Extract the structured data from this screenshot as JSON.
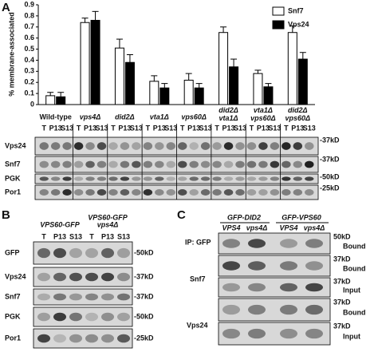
{
  "chart_data": {
    "type": "bar",
    "y_label": "% membrane-associated",
    "categories": [
      "Wild-type",
      "vps4Δ",
      "did2Δ",
      "vta1Δ",
      "vps60Δ",
      "did2Δ vta1Δ",
      "vta1Δ vps60Δ",
      "did2Δ vps60Δ"
    ],
    "series": [
      {
        "name": "Snf7",
        "color": "#ffffff",
        "values": [
          0.08,
          0.74,
          0.51,
          0.21,
          0.22,
          0.65,
          0.28,
          0.65
        ],
        "errors": [
          0.03,
          0.04,
          0.08,
          0.05,
          0.06,
          0.05,
          0.03,
          0.06
        ]
      },
      {
        "name": "Vps24",
        "color": "#000000",
        "values": [
          0.07,
          0.76,
          0.38,
          0.15,
          0.15,
          0.34,
          0.16,
          0.41
        ],
        "errors": [
          0.04,
          0.08,
          0.07,
          0.04,
          0.04,
          0.07,
          0.03,
          0.06
        ]
      }
    ],
    "ylim": [
      0,
      0.9
    ],
    "yticks": [
      0,
      0.1,
      0.2,
      0.3,
      0.4,
      0.5,
      0.6,
      0.7,
      0.8,
      0.9
    ],
    "legend": "top-right"
  },
  "panels": {
    "A": {
      "label": "A",
      "lanes": [
        "T",
        "P13",
        "S13"
      ],
      "rows": [
        "Vps24",
        "Snf7",
        "PGK",
        "Por1"
      ],
      "markers": [
        "-37kD",
        "-37kD",
        "-50kD",
        "-25kD"
      ]
    },
    "B": {
      "label": "B",
      "strains": [
        "VPS60-GFP",
        "VPS60-GFP vps4Δ"
      ],
      "lanes": [
        "T",
        "P13",
        "S13"
      ],
      "rows": [
        "GFP",
        "Vps24",
        "Snf7",
        "PGK",
        "Por1"
      ],
      "markers": [
        "-50kD",
        "-37kD",
        "-37kD",
        "-50kD",
        "-25kD"
      ]
    },
    "C": {
      "label": "C",
      "constructs": [
        "GFP-DID2",
        "GFP-VPS60"
      ],
      "strains": [
        "VPS4",
        "vps4Δ",
        "VPS4",
        "vps4Δ"
      ],
      "ip": "IP: GFP",
      "rows": [
        "Snf7",
        "Vps24"
      ],
      "fractions": [
        "Bound",
        "Bound",
        "Input",
        "Bound",
        "Input"
      ],
      "markers": [
        "50kD",
        "37kD",
        "37kD",
        "37kD",
        "37kD"
      ]
    }
  }
}
